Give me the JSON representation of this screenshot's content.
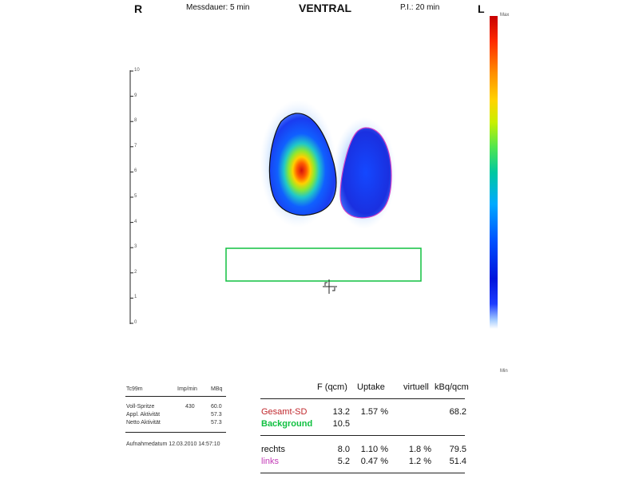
{
  "header": {
    "left_side": "R",
    "measure_duration": "Messdauer: 5 min",
    "view": "VENTRAL",
    "pi": "P.I.: 20 min",
    "right_side": "L"
  },
  "scale": {
    "ticks": [
      "10",
      "9",
      "8",
      "7",
      "6",
      "5",
      "4",
      "3",
      "2",
      "1",
      "0"
    ]
  },
  "colorbar": {
    "top_label": "Max",
    "bottom_label": "Min"
  },
  "colors": {
    "roi_total": "#111111",
    "roi_left": "#d040c8",
    "roi_background": "#10c040",
    "title_red": "#c0282d"
  },
  "left_table": {
    "head": [
      "Tc99m",
      "Imp/min",
      "MBq"
    ],
    "rows": [
      [
        "Voll-Spritze",
        "430",
        "60.0"
      ],
      [
        "Appl. Aktivität",
        "",
        "57.3"
      ],
      [
        "Netto Aktivität",
        "",
        "57.3"
      ]
    ],
    "footer": "Aufnahmedatum 12.03.2010 14:57:10"
  },
  "right_table": {
    "headers": [
      "F (qcm)",
      "Uptake",
      "virtuell",
      "kBq/qcm"
    ],
    "rows": [
      {
        "label": "Gesamt-SD",
        "f": "13.2",
        "uptake": "1.57 %",
        "virtuell": "",
        "kbq": "68.2"
      },
      {
        "label": "Background",
        "f": "10.5",
        "uptake": "",
        "virtuell": "",
        "kbq": ""
      },
      {
        "label": "rechts",
        "f": "8.0",
        "uptake": "1.10 %",
        "virtuell": "1.8 %",
        "kbq": "79.5"
      },
      {
        "label": "links",
        "f": "5.2",
        "uptake": "0.47 %",
        "virtuell": "1.2 %",
        "kbq": "51.4"
      }
    ]
  }
}
